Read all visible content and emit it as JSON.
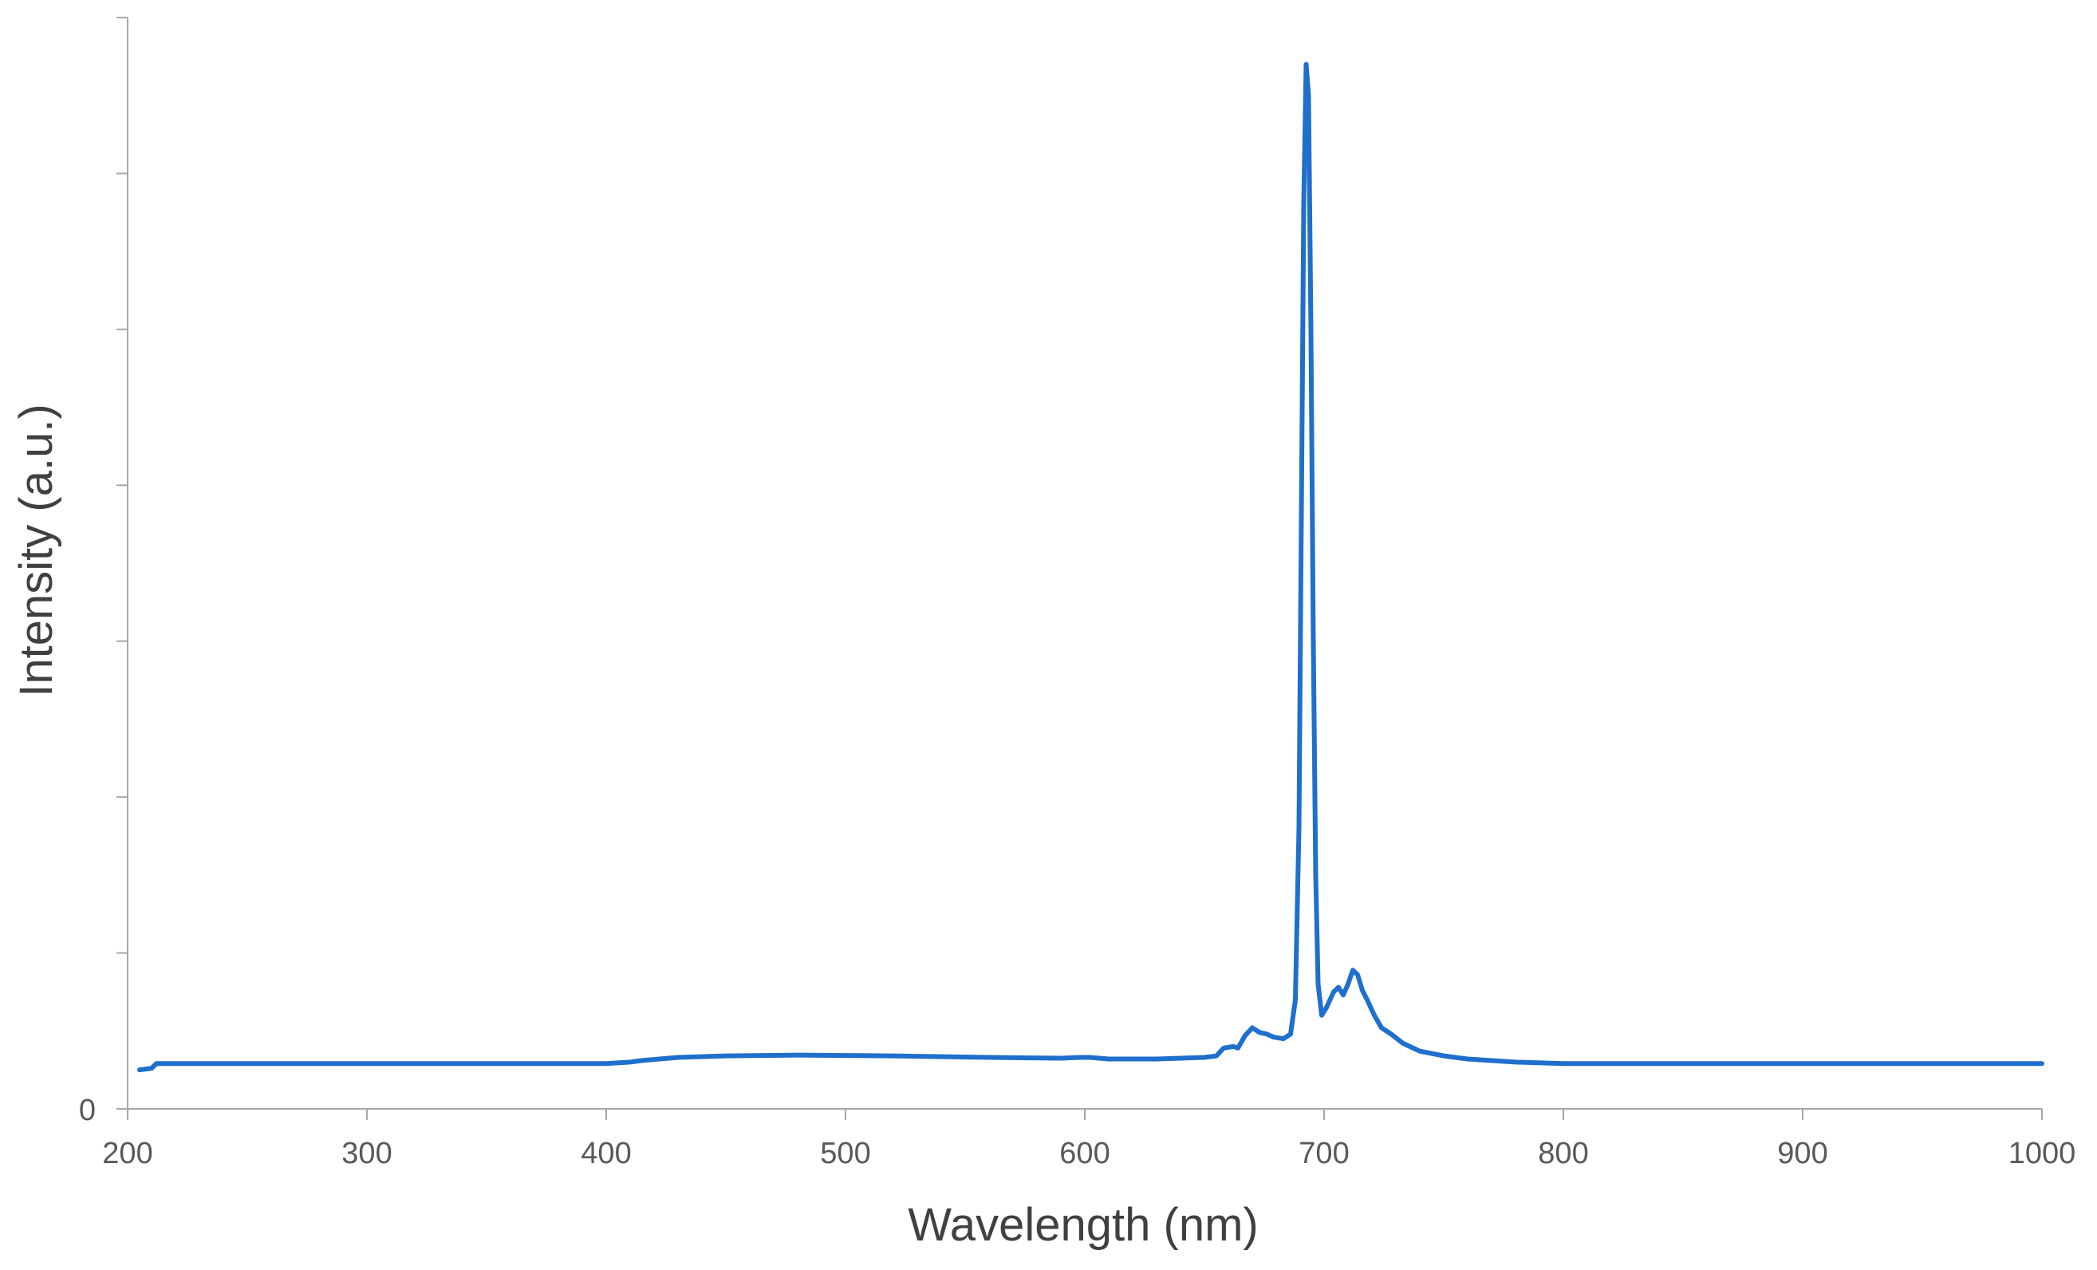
{
  "chart_data": {
    "type": "line",
    "title": "",
    "xlabel": "Wavelength (nm)",
    "ylabel": "Intensity (a.u.)",
    "xlim": [
      200,
      1000
    ],
    "ylim": [
      0,
      7
    ],
    "x_ticks": [
      "200",
      "300",
      "400",
      "500",
      "600",
      "700",
      "800",
      "900",
      "1000"
    ],
    "y_ticks": [
      "0",
      "",
      "",
      "",
      "",
      "",
      "",
      ""
    ],
    "grid": false,
    "legend": "none",
    "series": [
      {
        "color": "#1f6fcc",
        "points": [
          [
            205,
            0.25
          ],
          [
            210,
            0.26
          ],
          [
            212,
            0.29
          ],
          [
            250,
            0.29
          ],
          [
            300,
            0.29
          ],
          [
            350,
            0.29
          ],
          [
            400,
            0.29
          ],
          [
            410,
            0.3
          ],
          [
            415,
            0.31
          ],
          [
            430,
            0.33
          ],
          [
            450,
            0.34
          ],
          [
            480,
            0.345
          ],
          [
            520,
            0.34
          ],
          [
            560,
            0.33
          ],
          [
            590,
            0.325
          ],
          [
            598,
            0.33
          ],
          [
            602,
            0.33
          ],
          [
            610,
            0.32
          ],
          [
            630,
            0.32
          ],
          [
            650,
            0.33
          ],
          [
            655,
            0.34
          ],
          [
            658,
            0.39
          ],
          [
            662,
            0.4
          ],
          [
            664,
            0.39
          ],
          [
            667,
            0.47
          ],
          [
            670,
            0.52
          ],
          [
            673,
            0.49
          ],
          [
            676,
            0.48
          ],
          [
            679,
            0.46
          ],
          [
            683,
            0.45
          ],
          [
            686,
            0.48
          ],
          [
            688,
            0.7
          ],
          [
            689.5,
            1.8
          ],
          [
            690.5,
            3.8
          ],
          [
            691.5,
            5.8
          ],
          [
            692.5,
            6.7
          ],
          [
            693.5,
            6.5
          ],
          [
            694.5,
            5.0
          ],
          [
            695.5,
            3.0
          ],
          [
            696.5,
            1.5
          ],
          [
            697.5,
            0.8
          ],
          [
            699,
            0.6
          ],
          [
            701,
            0.65
          ],
          [
            704,
            0.75
          ],
          [
            706,
            0.78
          ],
          [
            708,
            0.73
          ],
          [
            710,
            0.8
          ],
          [
            712,
            0.89
          ],
          [
            714,
            0.86
          ],
          [
            716,
            0.76
          ],
          [
            718,
            0.7
          ],
          [
            721,
            0.6
          ],
          [
            724,
            0.52
          ],
          [
            728,
            0.48
          ],
          [
            733,
            0.42
          ],
          [
            740,
            0.37
          ],
          [
            750,
            0.34
          ],
          [
            760,
            0.32
          ],
          [
            780,
            0.3
          ],
          [
            800,
            0.29
          ],
          [
            850,
            0.29
          ],
          [
            900,
            0.29
          ],
          [
            950,
            0.29
          ],
          [
            1000,
            0.29
          ]
        ]
      }
    ]
  }
}
